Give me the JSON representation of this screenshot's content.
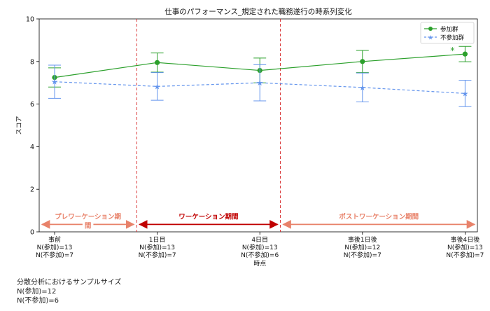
{
  "chart_data": {
    "type": "line",
    "title": "仕事のパフォーマンス_規定された職務遂行の時系列変化",
    "xlabel": "時点",
    "ylabel": "スコア",
    "ylim": [
      0,
      10
    ],
    "yticks": [
      0,
      2,
      4,
      6,
      8,
      10
    ],
    "grid": false,
    "legend_position": "top-right",
    "x": [
      0,
      1,
      2,
      3,
      4
    ],
    "categories": [
      {
        "lines": [
          "事前",
          "N(参加)=13",
          "N(不参加)=7"
        ]
      },
      {
        "lines": [
          "1日目",
          "N(参加)=13",
          "N(不参加)=7"
        ]
      },
      {
        "lines": [
          "4日目",
          "N(参加)=13",
          "N(不参加)=6"
        ]
      },
      {
        "lines": [
          "事後1日後",
          "N(参加)=12",
          "N(不参加)=7"
        ]
      },
      {
        "lines": [
          "事後4日後",
          "N(参加)=13",
          "N(不参加)=7"
        ]
      }
    ],
    "series": [
      {
        "name": "参加群",
        "color": "#2ca02c",
        "marker": "circle",
        "dash": "solid",
        "values": [
          7.25,
          7.95,
          7.58,
          8.0,
          8.35
        ],
        "err": [
          0.45,
          0.45,
          0.58,
          0.52,
          0.36
        ]
      },
      {
        "name": "不参加群",
        "color": "#6495ed",
        "marker": "star",
        "dash": "dashed",
        "values": [
          7.05,
          6.83,
          7.0,
          6.78,
          6.5
        ],
        "err": [
          0.78,
          0.65,
          0.85,
          0.68,
          0.62
        ]
      }
    ],
    "significance": [
      {
        "label": "*",
        "index": 4,
        "y": 8.55
      }
    ],
    "phases": [
      {
        "label": "プレワーケーション期間",
        "label_lines": [
          "プレワーケーション期",
          "間"
        ],
        "color": "#e8826a",
        "x_from": -0.15,
        "x_to": 0.8
      },
      {
        "label": "ワーケーション期間",
        "color": "#c00000",
        "x_from": 0.8,
        "x_to": 2.2
      },
      {
        "label": "ポストワーケーション期間",
        "color": "#e8826a",
        "x_from": 2.2,
        "x_to": 4.12
      }
    ],
    "dividers": [
      0.8,
      2.2
    ]
  },
  "note": {
    "title": "分散分析におけるサンプルサイズ",
    "line1": "N(参加)=12",
    "line2": "N(不参加)=6"
  }
}
